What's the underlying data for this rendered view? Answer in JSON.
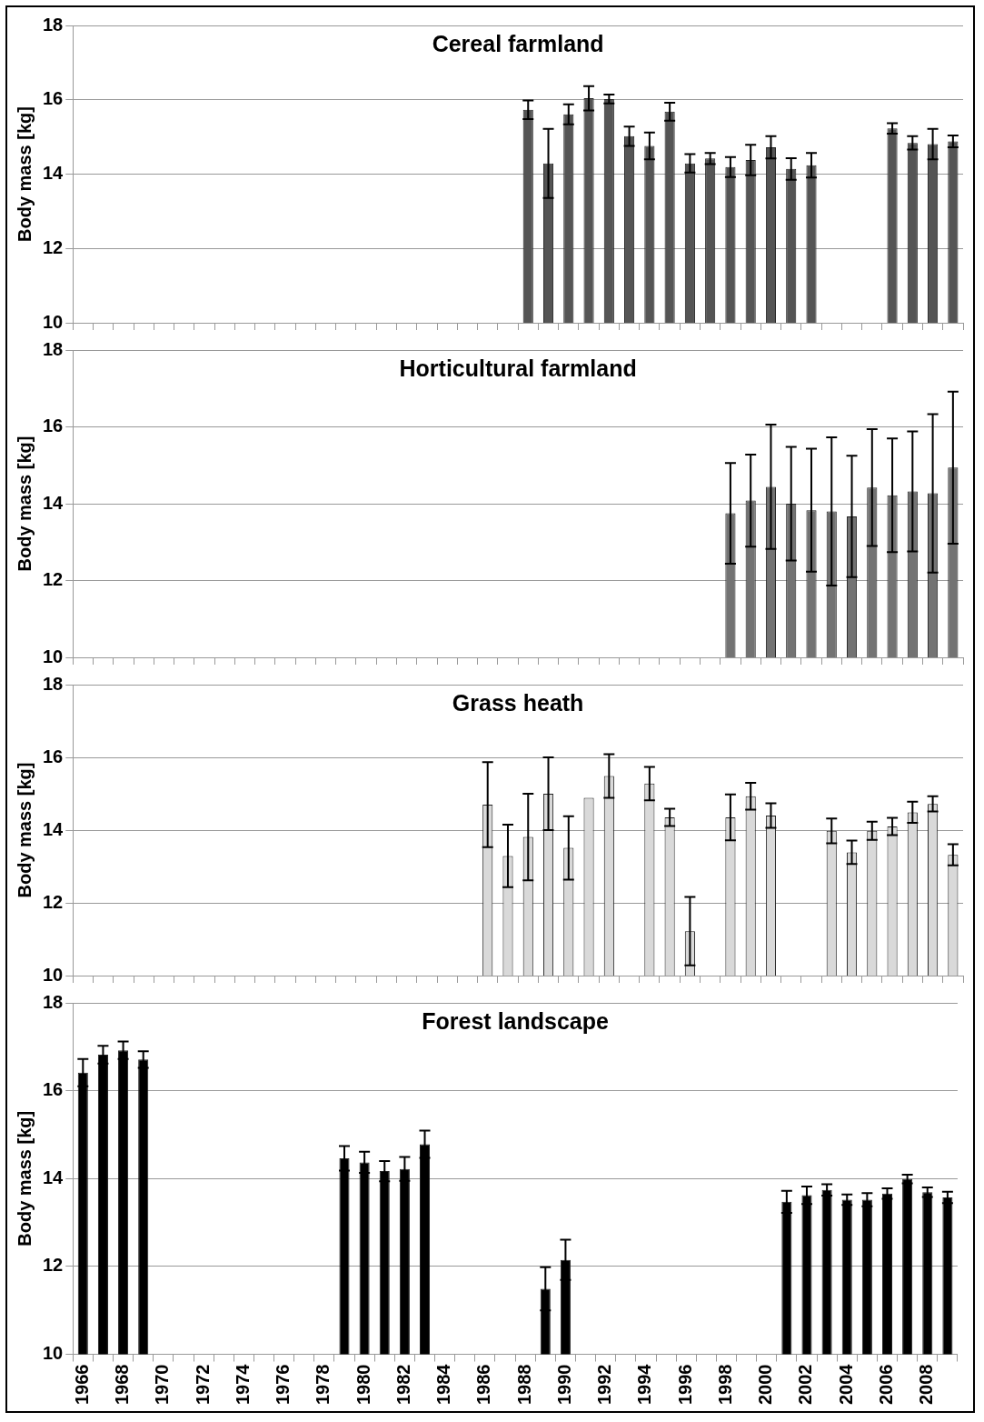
{
  "chart_data": [
    {
      "type": "bar",
      "title": "Cereal farmland",
      "ylabel": "Body mass [kg]",
      "categories": [
        "1966",
        null,
        "1968",
        null,
        "1970",
        null,
        "1972",
        null,
        "1974",
        null,
        "1976",
        null,
        "1978",
        null,
        "1980",
        null,
        "1982",
        null,
        "1984",
        null,
        "1986",
        null,
        "1988",
        null,
        "1990",
        null,
        "1992",
        null,
        "1994",
        null,
        "1996",
        null,
        "1998",
        null,
        "2000",
        null,
        "2002",
        null,
        "2004",
        null,
        "2006",
        null,
        "2008",
        null
      ],
      "values": [
        null,
        null,
        null,
        null,
        null,
        null,
        null,
        null,
        null,
        null,
        null,
        null,
        null,
        null,
        null,
        null,
        null,
        null,
        null,
        null,
        null,
        null,
        15.73,
        14.29,
        15.61,
        16.04,
        16.02,
        15.02,
        14.76,
        15.68,
        14.29,
        14.42,
        14.19,
        14.38,
        14.72,
        14.14,
        14.24,
        null,
        null,
        null,
        15.23,
        14.84,
        14.81,
        14.88
      ],
      "errors": [
        null,
        null,
        null,
        null,
        null,
        null,
        null,
        null,
        null,
        null,
        null,
        null,
        null,
        null,
        null,
        null,
        null,
        null,
        null,
        null,
        null,
        null,
        0.25,
        0.93,
        0.27,
        0.33,
        0.12,
        0.26,
        0.36,
        0.24,
        0.25,
        0.15,
        0.27,
        0.41,
        0.3,
        0.29,
        0.33,
        null,
        null,
        null,
        0.14,
        0.18,
        0.41,
        0.16
      ],
      "color": "#555555",
      "ylim": [
        10,
        18
      ],
      "yticks": [
        10,
        12,
        14,
        16,
        18
      ],
      "grid": "y",
      "tick_labels": "y"
    },
    {
      "type": "bar",
      "title": "Horticultural farmland",
      "ylabel": "Body mass [kg]",
      "categories": [
        "1966",
        null,
        "1968",
        null,
        "1970",
        null,
        "1972",
        null,
        "1974",
        null,
        "1976",
        null,
        "1978",
        null,
        "1980",
        null,
        "1982",
        null,
        "1984",
        null,
        "1986",
        null,
        "1988",
        null,
        "1990",
        null,
        "1992",
        null,
        "1994",
        null,
        "1996",
        null,
        "1998",
        null,
        "2000",
        null,
        "2002",
        null,
        "2004",
        null,
        "2006",
        null,
        "2008",
        null
      ],
      "values": [
        null,
        null,
        null,
        null,
        null,
        null,
        null,
        null,
        null,
        null,
        null,
        null,
        null,
        null,
        null,
        null,
        null,
        null,
        null,
        null,
        null,
        null,
        null,
        null,
        null,
        null,
        null,
        null,
        null,
        null,
        null,
        null,
        13.75,
        14.08,
        14.44,
        14.0,
        13.83,
        13.8,
        13.67,
        14.42,
        14.22,
        14.32,
        14.27,
        14.94
      ],
      "errors": [
        null,
        null,
        null,
        null,
        null,
        null,
        null,
        null,
        null,
        null,
        null,
        null,
        null,
        null,
        null,
        null,
        null,
        null,
        null,
        null,
        null,
        null,
        null,
        null,
        null,
        null,
        null,
        null,
        null,
        null,
        null,
        null,
        1.31,
        1.2,
        1.62,
        1.48,
        1.6,
        1.93,
        1.58,
        1.52,
        1.48,
        1.56,
        2.06,
        1.98
      ],
      "color": "#737373",
      "ylim": [
        10,
        18
      ],
      "yticks": [
        10,
        12,
        14,
        16,
        18
      ],
      "grid": "y",
      "tick_labels": "y"
    },
    {
      "type": "bar",
      "title": "Grass heath",
      "ylabel": "Body mass [kg]",
      "categories": [
        "1966",
        null,
        "1968",
        null,
        "1970",
        null,
        "1972",
        null,
        "1974",
        null,
        "1976",
        null,
        "1978",
        null,
        "1980",
        null,
        "1982",
        null,
        "1984",
        null,
        "1986",
        null,
        "1988",
        null,
        "1990",
        null,
        "1992",
        null,
        "1994",
        null,
        "1996",
        null,
        "1998",
        null,
        "2000",
        null,
        "2002",
        null,
        "2004",
        null,
        "2006",
        null,
        "2008",
        null
      ],
      "values": [
        null,
        null,
        null,
        null,
        null,
        null,
        null,
        null,
        null,
        null,
        null,
        null,
        null,
        null,
        null,
        null,
        null,
        null,
        null,
        null,
        14.7,
        13.29,
        13.81,
        15.0,
        13.51,
        14.89,
        15.49,
        null,
        15.28,
        14.35,
        11.22,
        null,
        14.35,
        14.93,
        14.4,
        null,
        null,
        13.98,
        13.39,
        13.98,
        14.1,
        14.49,
        14.72,
        13.32
      ],
      "errors": [
        null,
        null,
        null,
        null,
        null,
        null,
        null,
        null,
        null,
        null,
        null,
        null,
        null,
        null,
        null,
        null,
        null,
        null,
        null,
        null,
        1.17,
        0.86,
        1.19,
        1.0,
        0.87,
        null,
        0.6,
        null,
        0.46,
        0.24,
        0.94,
        null,
        0.63,
        0.37,
        0.34,
        null,
        null,
        0.34,
        0.32,
        0.25,
        0.24,
        0.29,
        0.21,
        0.29
      ],
      "color": "#d9d9d9",
      "ylim": [
        10,
        18
      ],
      "yticks": [
        10,
        12,
        14,
        16,
        18
      ],
      "grid": "y",
      "tick_labels": "y"
    },
    {
      "type": "bar",
      "title": "Forest landscape",
      "ylabel": "Body mass [kg]",
      "categories": [
        "1966",
        null,
        "1968",
        null,
        "1970",
        null,
        "1972",
        null,
        "1974",
        null,
        "1976",
        null,
        "1978",
        null,
        "1980",
        null,
        "1982",
        null,
        "1984",
        null,
        "1986",
        null,
        "1988",
        null,
        "1990",
        null,
        "1992",
        null,
        "1994",
        null,
        "1996",
        null,
        "1998",
        null,
        "2000",
        null,
        "2002",
        null,
        "2004",
        null,
        "2006",
        null,
        "2008",
        null
      ],
      "values": [
        16.41,
        16.82,
        16.92,
        16.71,
        null,
        null,
        null,
        null,
        null,
        null,
        null,
        null,
        null,
        14.46,
        14.37,
        14.17,
        14.22,
        14.78,
        null,
        null,
        null,
        null,
        null,
        11.49,
        12.15,
        null,
        null,
        null,
        null,
        null,
        null,
        null,
        null,
        null,
        null,
        13.47,
        13.62,
        13.74,
        13.52,
        13.52,
        13.66,
        13.99,
        13.69,
        13.57
      ],
      "errors": [
        0.31,
        0.2,
        0.2,
        0.19,
        null,
        null,
        null,
        null,
        null,
        null,
        null,
        null,
        null,
        0.28,
        0.24,
        0.23,
        0.27,
        0.31,
        null,
        null,
        null,
        null,
        null,
        0.49,
        0.46,
        null,
        null,
        null,
        null,
        null,
        null,
        null,
        null,
        null,
        null,
        0.25,
        0.2,
        0.13,
        0.12,
        0.15,
        0.12,
        0.1,
        0.11,
        0.13
      ],
      "color": "#000000",
      "ylim": [
        10,
        18
      ],
      "yticks": [
        10,
        12,
        14,
        16,
        18
      ],
      "grid": "y"
    }
  ]
}
